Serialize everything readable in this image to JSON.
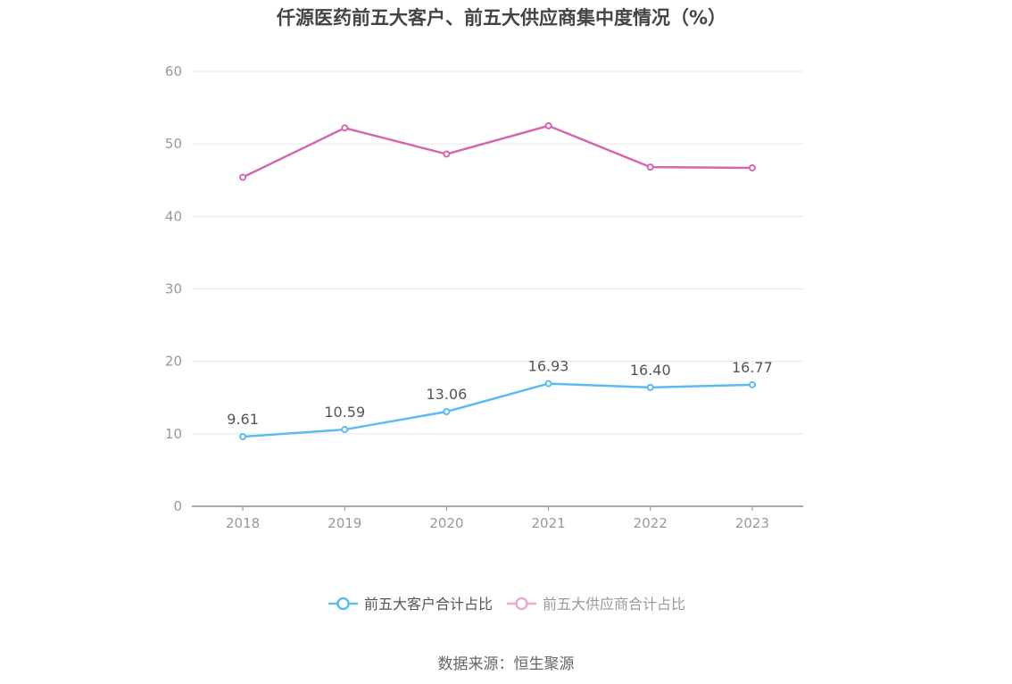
{
  "chart_data": {
    "type": "line",
    "title": "仟源医药前五大客户、前五大供应商集中度情况（%）",
    "categories": [
      "2018",
      "2019",
      "2020",
      "2021",
      "2022",
      "2023"
    ],
    "ylim": [
      0,
      60
    ],
    "yticks": [
      "0",
      "10",
      "20",
      "30",
      "40",
      "50",
      "60"
    ],
    "grid": true,
    "legend_position": "bottom",
    "series": [
      {
        "name": "前五大客户合计占比",
        "values": [
          9.61,
          10.59,
          13.06,
          16.93,
          16.4,
          16.77
        ],
        "labels": [
          "9.61",
          "10.59",
          "13.06",
          "16.93",
          "16.40",
          "16.77"
        ],
        "color": "#5bbcf0"
      },
      {
        "name": "前五大供应商合计占比",
        "values": [
          45.4,
          52.2,
          48.6,
          52.5,
          46.8,
          46.7
        ],
        "color": "#d468b0"
      }
    ]
  },
  "source": "数据来源：恒生聚源"
}
